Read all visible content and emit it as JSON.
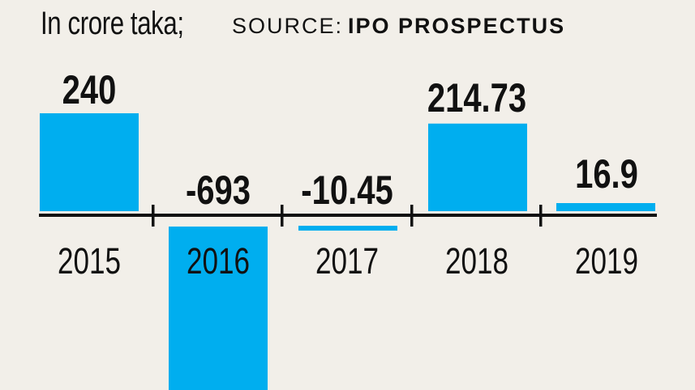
{
  "chart_data": {
    "type": "bar",
    "unit_label": "In crore taka;",
    "source_label": "SOURCE:",
    "source_name": "IPO PROSPECTUS",
    "categories": [
      "2015",
      "2016",
      "2017",
      "2018",
      "2019"
    ],
    "values": [
      240,
      -693,
      -10.45,
      214.73,
      16.9
    ],
    "value_labels": [
      "240",
      "-693",
      "-10.45",
      "214.73",
      "16.9"
    ],
    "bar_color": "#00aeef",
    "highlight_label_color": "#ffffff",
    "text_color": "#111111",
    "axis_color": "#111111"
  }
}
